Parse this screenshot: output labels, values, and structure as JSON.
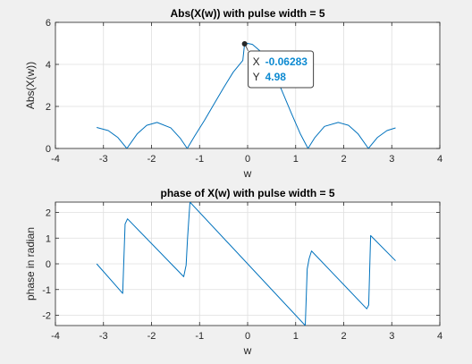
{
  "colors": {
    "series": "#0072BD",
    "datatip_value": "#0d8ad1",
    "marker": "#262626"
  },
  "chart_data": [
    {
      "type": "line",
      "title": "Abs(X(w)) with pulse width = 5",
      "xlabel": "w",
      "ylabel": "Abs(X(w))",
      "xlim": [
        -4,
        4
      ],
      "ylim": [
        0,
        6
      ],
      "xticks": [
        "-4",
        "-3",
        "-2",
        "-1",
        "0",
        "1",
        "2",
        "3",
        "4"
      ],
      "yticks": [
        "0",
        "2",
        "4",
        "6"
      ],
      "grid": true,
      "series": [
        {
          "x": [
            -3.1416,
            -2.9,
            -2.7,
            -2.5133,
            -2.3,
            -2.1,
            -1.885,
            -1.6,
            -1.4,
            -1.2566,
            -1.1,
            -0.9,
            -0.7,
            -0.5,
            -0.3,
            -0.1,
            -0.06283,
            0,
            0.1,
            0.3,
            0.5,
            0.7,
            0.9,
            1.1,
            1.2566,
            1.4,
            1.6,
            1.885,
            2.1,
            2.3,
            2.5133,
            2.7,
            2.9,
            3.0788
          ],
          "y": [
            1.0,
            0.85,
            0.52,
            0.0,
            0.69,
            1.1,
            1.24,
            0.98,
            0.48,
            0.0,
            0.6,
            1.33,
            2.11,
            2.89,
            3.63,
            4.19,
            4.98,
            5.0,
            4.95,
            4.56,
            3.81,
            2.82,
            1.73,
            0.68,
            0.0,
            0.52,
            1.05,
            1.24,
            1.1,
            0.69,
            0.0,
            0.52,
            0.85,
            0.98
          ]
        }
      ],
      "datatip": {
        "x_key": "X",
        "y_key": "Y",
        "x_value": "-0.06283",
        "y_value": "4.98",
        "x": -0.06283,
        "y": 4.98
      }
    },
    {
      "type": "line",
      "title": "phase of X(w) with pulse width = 5",
      "xlabel": "w",
      "ylabel": "phase in radian",
      "xlim": [
        -4,
        4
      ],
      "ylim": [
        -2.4,
        2.4
      ],
      "xticks": [
        "-4",
        "-3",
        "-2",
        "-1",
        "0",
        "1",
        "2",
        "3",
        "4"
      ],
      "yticks": [
        "-2",
        "-1",
        "0",
        "1",
        "2"
      ],
      "grid": true,
      "series": [
        {
          "x": [
            -3.1416,
            -2.6,
            -2.55,
            -2.5,
            -1.33,
            -1.28,
            -1.25,
            -1.2,
            1.2,
            1.24,
            1.28,
            1.33,
            2.48,
            2.52,
            2.56,
            3.0788
          ],
          "y": [
            0.0,
            -1.15,
            1.55,
            1.75,
            -0.5,
            -0.05,
            1.0,
            2.4,
            -2.4,
            -0.2,
            0.2,
            0.5,
            -1.75,
            -1.6,
            1.1,
            0.12
          ]
        }
      ]
    }
  ]
}
